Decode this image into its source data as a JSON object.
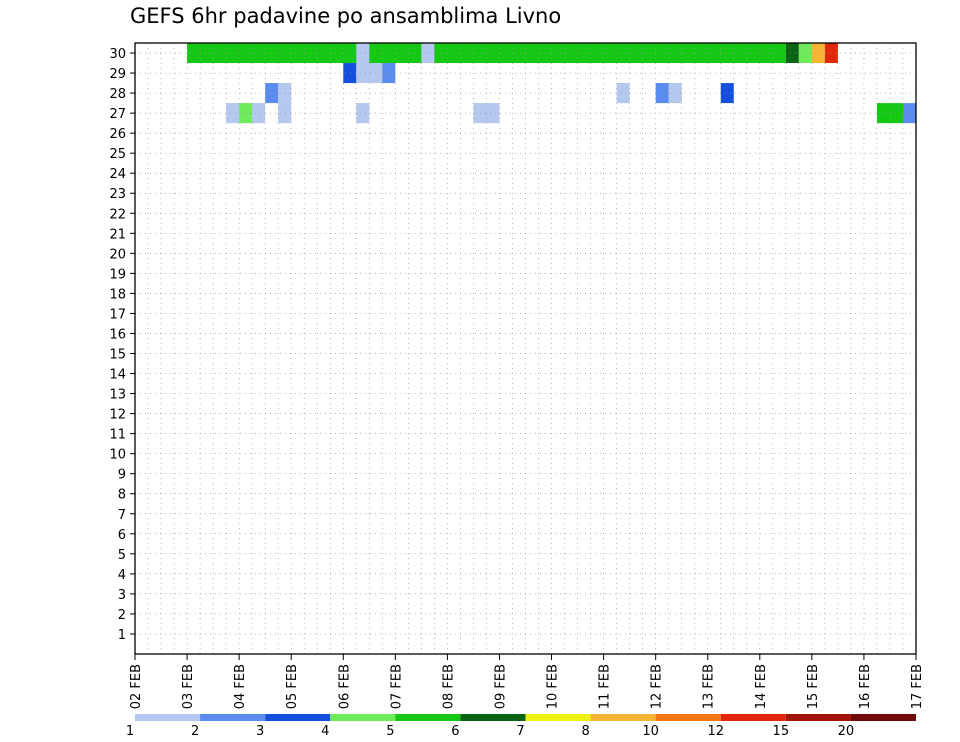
{
  "chart_data": {
    "type": "heatmap",
    "title": "GEFS 6hr padavine po ansamblima Livno",
    "xlabel": "",
    "ylabel": "",
    "x_start": "02 FEB",
    "x_end": "17 FEB",
    "x_step_hours": 6,
    "x_tick_labels": [
      "02 FEB",
      "03 FEB",
      "04 FEB",
      "05 FEB",
      "06 FEB",
      "07 FEB",
      "08 FEB",
      "09 FEB",
      "10 FEB",
      "11 FEB",
      "12 FEB",
      "13 FEB",
      "14 FEB",
      "15 FEB",
      "16 FEB",
      "17 FEB"
    ],
    "y_tick_labels": [
      "1",
      "2",
      "3",
      "4",
      "5",
      "6",
      "7",
      "8",
      "9",
      "10",
      "11",
      "12",
      "13",
      "14",
      "15",
      "16",
      "17",
      "18",
      "19",
      "20",
      "21",
      "22",
      "23",
      "24",
      "25",
      "26",
      "27",
      "28",
      "29",
      "30"
    ],
    "grid": true,
    "legend": "colorbar-bottom",
    "colorbar": {
      "levels": [
        "1",
        "2",
        "3",
        "4",
        "5",
        "6",
        "7",
        "8",
        "10",
        "12",
        "15",
        "20"
      ],
      "colors": [
        "#b4c8f0",
        "#5a8cf0",
        "#1450dc",
        "#6eeb5a",
        "#14c814",
        "#0a6414",
        "#f0f014",
        "#f5b432",
        "#f57814",
        "#e1280a",
        "#a0140a",
        "#6e0a0a"
      ]
    },
    "cells": [
      [
        "03 FEB 00Z",
        "14 FEB 12Z",
        30,
        null,
        "#14c814"
      ],
      [
        "06 FEB 06Z",
        "06 FEB 12Z",
        30,
        null,
        "#b4c8f0"
      ],
      [
        "07 FEB 12Z",
        "07 FEB 18Z",
        30,
        null,
        "#b4c8f0"
      ],
      [
        "14 FEB 12Z",
        "14 FEB 18Z",
        30,
        null,
        "#0a6414"
      ],
      [
        "14 FEB 18Z",
        "15 FEB 00Z",
        30,
        null,
        "#6eeb5a"
      ],
      [
        "15 FEB 00Z",
        "15 FEB 06Z",
        30,
        null,
        "#f5b432"
      ],
      [
        "15 FEB 06Z",
        "15 FEB 12Z",
        30,
        null,
        "#e1280a"
      ],
      [
        "06 FEB 00Z",
        "06 FEB 06Z",
        29,
        null,
        "#1450dc"
      ],
      [
        "06 FEB 06Z",
        "06 FEB 18Z",
        29,
        null,
        "#b4c8f0"
      ],
      [
        "06 FEB 18Z",
        "07 FEB 00Z",
        29,
        null,
        "#5a8cf0"
      ],
      [
        "04 FEB 12Z",
        "04 FEB 18Z",
        28,
        null,
        "#5a8cf0"
      ],
      [
        "04 FEB 18Z",
        "05 FEB 00Z",
        28,
        null,
        "#b4c8f0"
      ],
      [
        "11 FEB 06Z",
        "11 FEB 12Z",
        28,
        null,
        "#b4c8f0"
      ],
      [
        "12 FEB 00Z",
        "12 FEB 06Z",
        28,
        null,
        "#5a8cf0"
      ],
      [
        "12 FEB 06Z",
        "12 FEB 12Z",
        28,
        null,
        "#b4c8f0"
      ],
      [
        "13 FEB 06Z",
        "13 FEB 12Z",
        28,
        null,
        "#1450dc"
      ],
      [
        "03 FEB 18Z",
        "04 FEB 00Z",
        27,
        null,
        "#b4c8f0"
      ],
      [
        "04 FEB 00Z",
        "04 FEB 06Z",
        27,
        null,
        "#6eeb5a"
      ],
      [
        "04 FEB 06Z",
        "04 FEB 12Z",
        27,
        null,
        "#b4c8f0"
      ],
      [
        "04 FEB 18Z",
        "05 FEB 00Z",
        27,
        null,
        "#b4c8f0"
      ],
      [
        "06 FEB 06Z",
        "06 FEB 12Z",
        27,
        null,
        "#b4c8f0"
      ],
      [
        "08 FEB 12Z",
        "09 FEB 00Z",
        27,
        null,
        "#b4c8f0"
      ],
      [
        "16 FEB 06Z",
        "16 FEB 18Z",
        27,
        null,
        "#14c814"
      ],
      [
        "16 FEB 18Z",
        "17 FEB 00Z",
        27,
        null,
        "#5a8cf0"
      ]
    ]
  }
}
